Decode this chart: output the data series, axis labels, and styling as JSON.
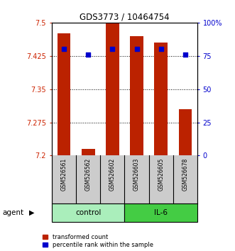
{
  "title": "GDS3773 / 10464754",
  "samples": [
    "GSM526561",
    "GSM526562",
    "GSM526602",
    "GSM526603",
    "GSM526605",
    "GSM526678"
  ],
  "groups": [
    "control",
    "control",
    "control",
    "IL-6",
    "IL-6",
    "IL-6"
  ],
  "transformed_counts": [
    7.475,
    7.215,
    7.5,
    7.47,
    7.455,
    7.305
  ],
  "percentile_ranks": [
    80,
    76,
    80,
    80,
    80,
    76
  ],
  "ylim": [
    7.2,
    7.5
  ],
  "yticks": [
    7.2,
    7.275,
    7.35,
    7.425,
    7.5
  ],
  "ytick_labels": [
    "7.2",
    "7.275",
    "7.35",
    "7.425",
    "7.5"
  ],
  "y2ticks": [
    0,
    25,
    50,
    75,
    100
  ],
  "y2tick_labels": [
    "0",
    "25",
    "50",
    "75",
    "100%"
  ],
  "bar_color": "#bb2200",
  "dot_color": "#0000cc",
  "bar_width": 0.55,
  "group_colors": {
    "control": "#aaeebb",
    "IL-6": "#44cc44"
  },
  "legend_items": [
    {
      "label": "transformed count",
      "color": "#bb2200"
    },
    {
      "label": "percentile rank within the sample",
      "color": "#0000cc"
    }
  ],
  "ylabel_color": "#cc2200",
  "y2label_color": "#0000cc",
  "background_color": "#ffffff",
  "sample_bg_color": "#cccccc"
}
